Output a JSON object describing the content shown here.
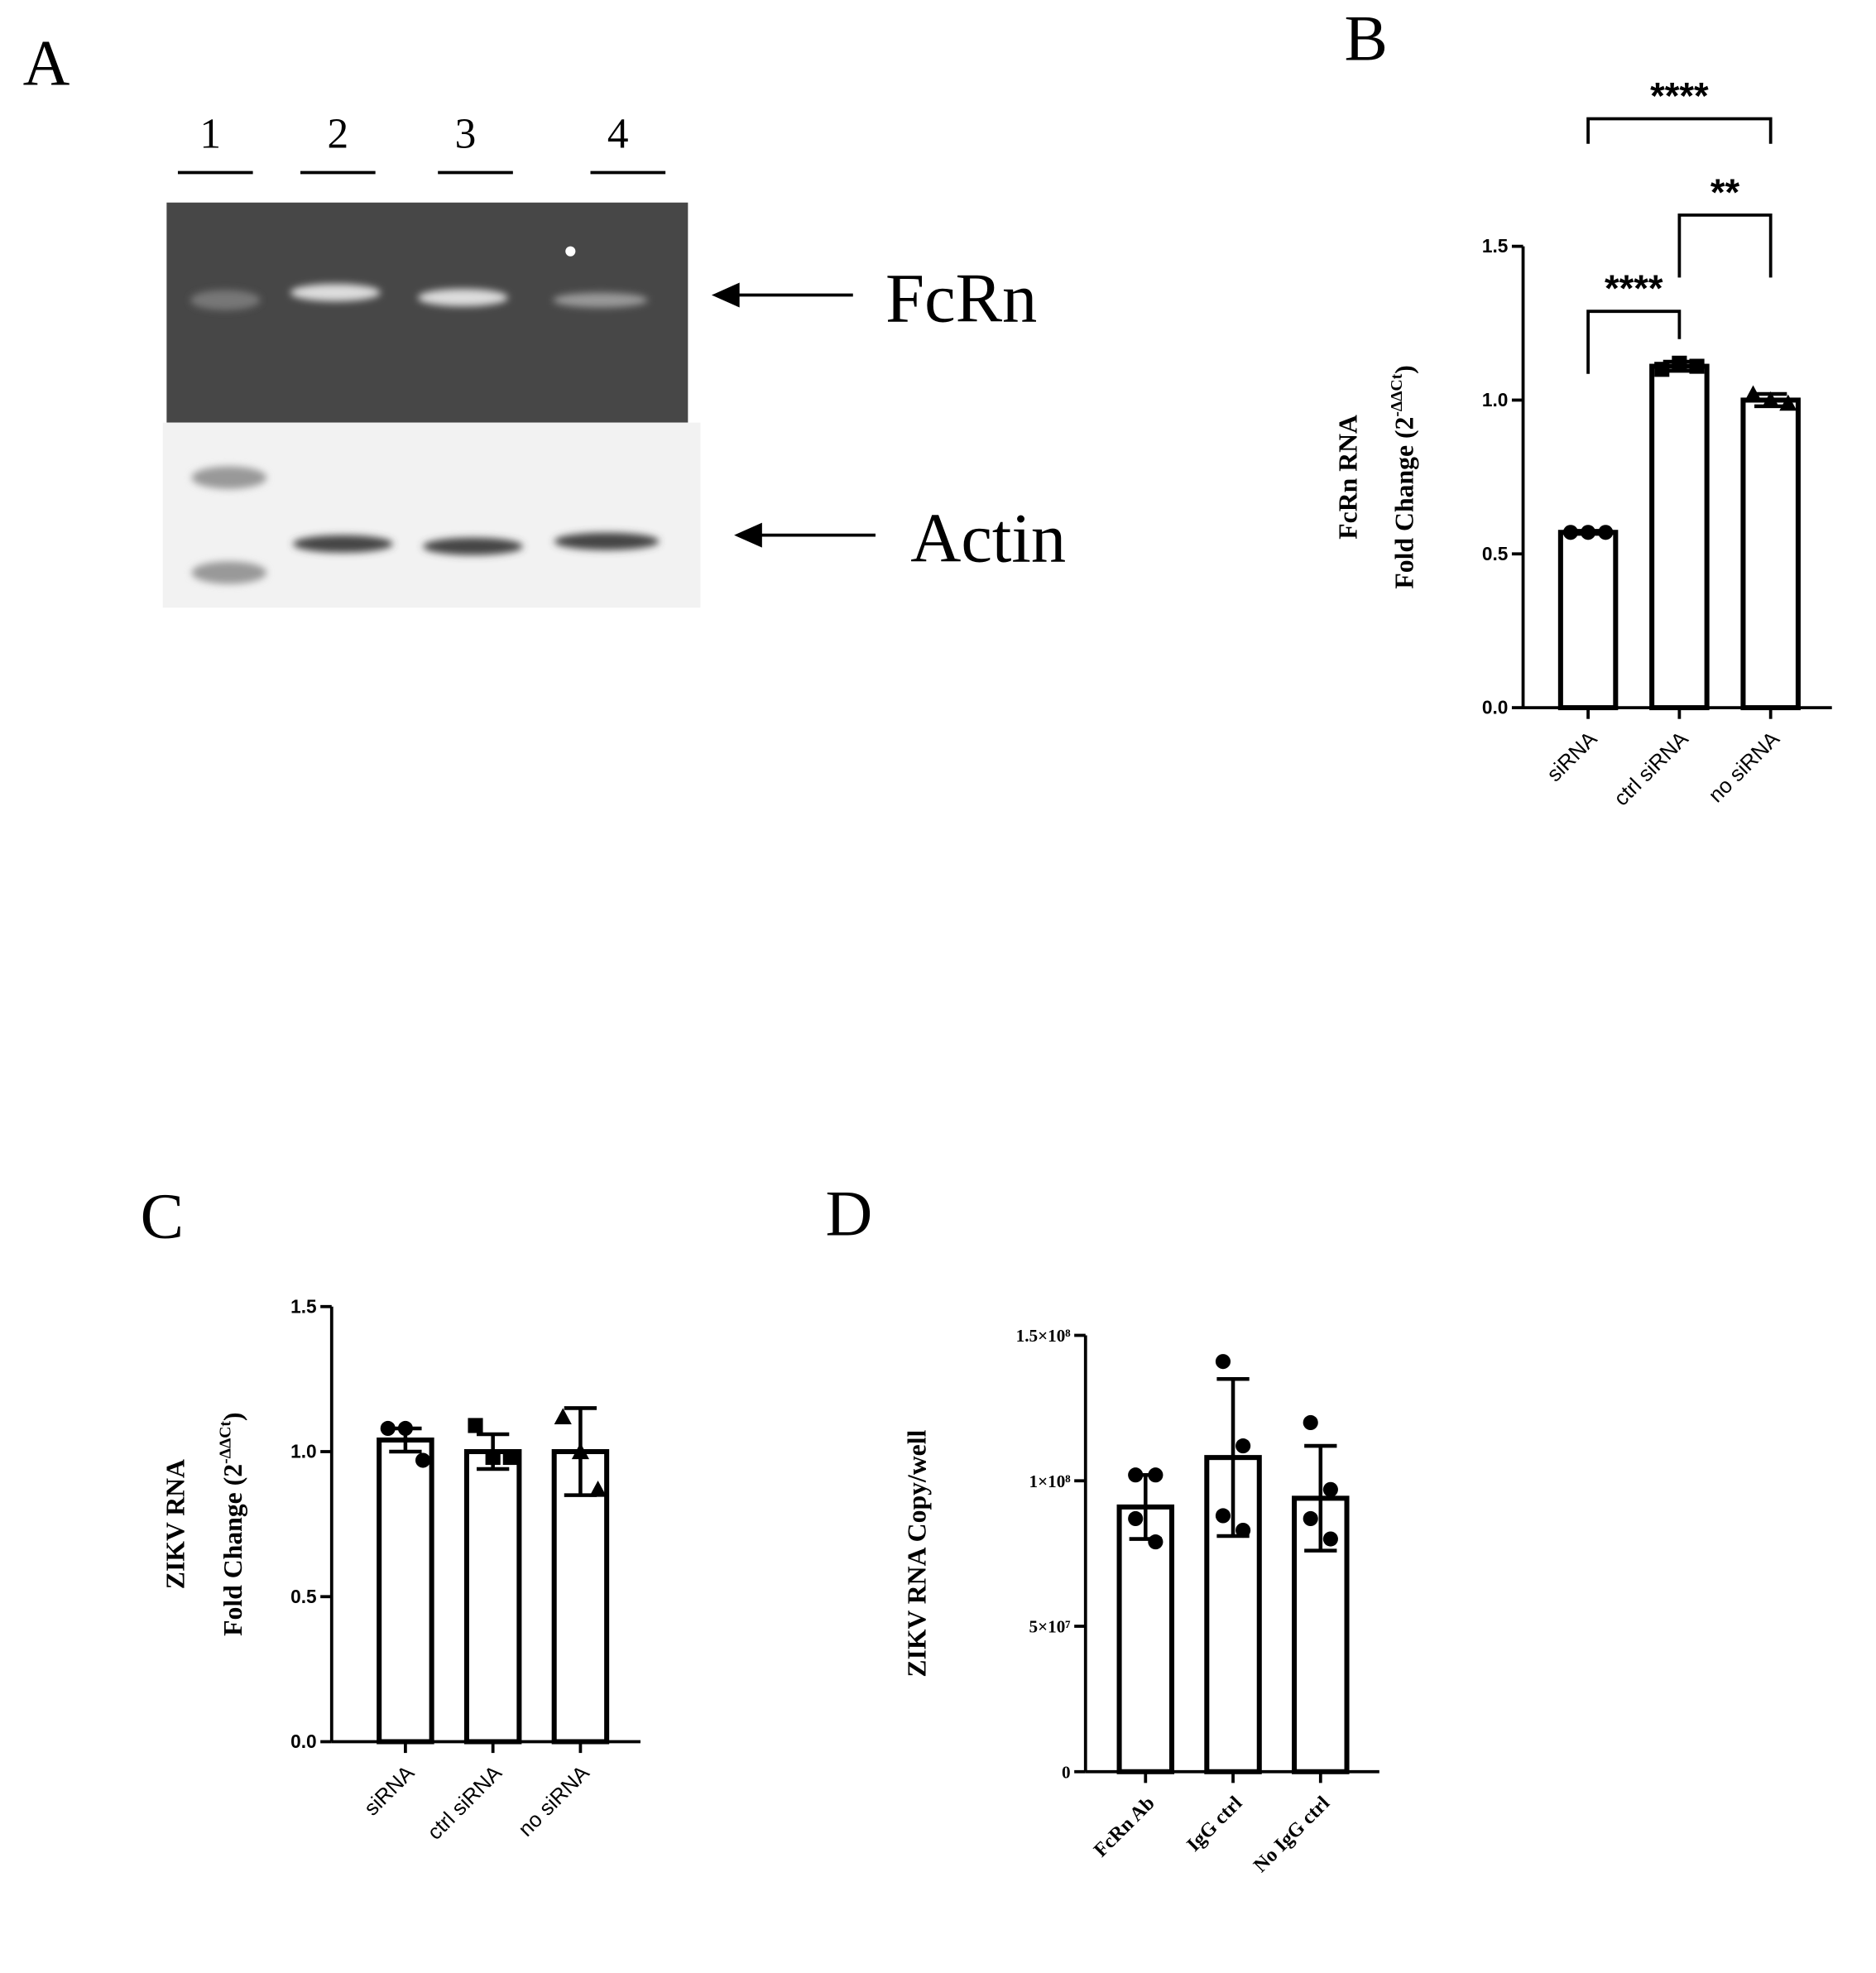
{
  "blot": {
    "panel": "A",
    "lanes": [
      "1",
      "2",
      "3",
      "4"
    ],
    "bands": [
      "FcRn",
      "Actin"
    ]
  },
  "chart_data": [
    {
      "type": "bar",
      "panel": "B",
      "ylabel": "FcRn RNA",
      "ylabel_line2": [
        "Fold Change (2",
        "-ΔΔCt",
        ")"
      ],
      "categories": [
        "siRNA",
        "ctrl siRNA",
        "no siRNA"
      ],
      "values": [
        0.57,
        1.11,
        1.0
      ],
      "errors": [
        0.005,
        0.015,
        0.02
      ],
      "points": [
        [
          0.57,
          0.57,
          0.57
        ],
        [
          1.1,
          1.12,
          1.11
        ],
        [
          1.02,
          1.0,
          0.99
        ]
      ],
      "markers": [
        "circle",
        "square",
        "triangle"
      ],
      "color": "#000000",
      "fill": "#ffffff",
      "ylim": [
        0,
        1.5
      ],
      "yticks": [
        {
          "value": 0,
          "label": "0.0"
        },
        0.5,
        {
          "value": 1,
          "label": "1.0"
        },
        1.5
      ],
      "annotations": [
        {
          "pair": [
            0,
            1
          ],
          "label": "****"
        },
        {
          "pair": [
            1,
            2
          ],
          "label": "**"
        },
        {
          "pair": [
            0,
            2
          ],
          "label": "****"
        }
      ]
    },
    {
      "type": "bar",
      "panel": "C",
      "ylabel": "ZIKV RNA",
      "ylabel_line2": [
        "Fold Change (2",
        "-ΔΔCt",
        ")"
      ],
      "categories": [
        "siRNA",
        "ctrl siRNA",
        "no siRNA"
      ],
      "values": [
        1.04,
        1.0,
        1.0
      ],
      "errors": [
        0.04,
        0.06,
        0.15
      ],
      "points": [
        [
          1.08,
          1.08,
          0.97
        ],
        [
          1.09,
          0.98,
          0.98
        ],
        [
          1.12,
          1.0,
          0.87
        ]
      ],
      "markers": [
        "circle",
        "square",
        "triangle"
      ],
      "color": "#000000",
      "fill": "#ffffff",
      "ylim": [
        0,
        1.5
      ],
      "yticks": [
        {
          "value": 0,
          "label": "0.0"
        },
        0.5,
        {
          "value": 1,
          "label": "1.0"
        },
        1.5
      ]
    },
    {
      "type": "bar",
      "panel": "D",
      "ylabel": "ZIKV RNA Copy/well",
      "categories": [
        "FcRn Ab",
        "IgG ctrl",
        "No IgG ctrl"
      ],
      "values": [
        91000000,
        108000000,
        94000000
      ],
      "errors": [
        11000000,
        27000000,
        18000000
      ],
      "points": [
        [
          102000000,
          102000000,
          87000000,
          79000000
        ],
        [
          141000000,
          112000000,
          88000000,
          83000000
        ],
        [
          120000000,
          97000000,
          87000000,
          80000000
        ]
      ],
      "markers": [
        "circle",
        "circle",
        "circle"
      ],
      "color": "#000000",
      "fill": "#ffffff",
      "ylim": [
        0,
        150000000
      ],
      "yticks": [
        0,
        {
          "value": 50000000,
          "label": "5×10⁷"
        },
        {
          "value": 100000000,
          "label": "1×10⁸"
        },
        {
          "value": 150000000,
          "label": "1.5×10⁸"
        }
      ]
    }
  ]
}
